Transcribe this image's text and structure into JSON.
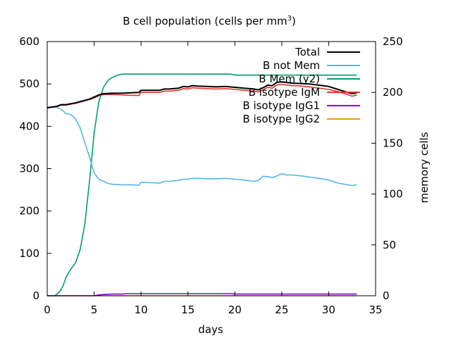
{
  "chart_data": {
    "type": "line",
    "title": "B cell population (cells per mm",
    "title_superscript": "3",
    "title_suffix": ")",
    "xlabel": "days",
    "ylabel": "",
    "y2label": "memory cells",
    "xlim": [
      0,
      35
    ],
    "ylim": [
      0,
      600
    ],
    "y2lim": [
      0,
      250
    ],
    "xticks": [
      0,
      5,
      10,
      15,
      20,
      25,
      30,
      35
    ],
    "yticks": [
      0,
      100,
      200,
      300,
      400,
      500,
      600
    ],
    "y2ticks": [
      0,
      50,
      100,
      150,
      200,
      250
    ],
    "grid": false,
    "legend_position": "top-right",
    "series": [
      {
        "name": "Total",
        "color": "#000000",
        "axis": "y",
        "x": [
          0,
          1,
          1.5,
          2,
          2.5,
          3,
          3.5,
          4,
          4.5,
          5,
          5.5,
          6,
          7,
          8,
          9,
          9.8,
          10,
          11,
          12,
          12.5,
          13,
          14,
          14.5,
          15,
          15.5,
          16,
          17,
          18,
          19,
          20,
          21,
          22,
          22.5,
          23,
          23.5,
          24,
          24.5,
          25,
          26,
          27,
          28,
          29,
          30,
          31,
          32,
          32.5,
          33
        ],
        "values": [
          444,
          447,
          451,
          451,
          453,
          455,
          458,
          461,
          464,
          469,
          474,
          477,
          478,
          478,
          479,
          480,
          485,
          485,
          485,
          488,
          488,
          490,
          494,
          493,
          496,
          495,
          494,
          493,
          494,
          492,
          490,
          488,
          486,
          491,
          497,
          496,
          504,
          505,
          502,
          501,
          500,
          497,
          494,
          487,
          480,
          477,
          479
        ]
      },
      {
        "name": "B not Mem",
        "color": "#56b4e9",
        "axis": "y",
        "x": [
          0,
          1,
          1.5,
          2,
          2.5,
          3,
          3.5,
          4,
          4.5,
          5,
          5.5,
          6,
          6.5,
          7,
          8,
          9,
          9.8,
          10,
          11,
          12,
          12.5,
          13,
          14,
          14.5,
          15,
          15.5,
          16,
          17,
          18,
          19,
          20,
          21,
          22,
          22.5,
          23,
          23.5,
          24,
          24.5,
          25,
          25.5,
          26,
          27,
          28,
          29,
          30,
          31,
          32,
          32.5,
          33
        ],
        "values": [
          444,
          445,
          440,
          430,
          428,
          418,
          397,
          362,
          328,
          290,
          275,
          270,
          265,
          263,
          262,
          262,
          261,
          268,
          267,
          266,
          270,
          270,
          272,
          275,
          275,
          277,
          277,
          276,
          276,
          277,
          275,
          273,
          270,
          272,
          282,
          281,
          279,
          283,
          288,
          285,
          285,
          283,
          280,
          277,
          273,
          266,
          262,
          260,
          262
        ]
      },
      {
        "name": "B Mem (y2)",
        "color": "#009e73",
        "axis": "y2",
        "x": [
          0,
          0.8,
          1.1,
          1.4,
          1.7,
          2,
          2.5,
          3,
          3.5,
          4,
          4.5,
          5,
          5.5,
          6,
          6.5,
          7,
          7.5,
          8,
          9,
          10,
          12,
          14,
          16,
          18,
          19.5,
          20,
          22,
          24,
          26,
          28,
          30,
          32,
          33
        ],
        "values": [
          0,
          0,
          2,
          5,
          10,
          18,
          26,
          32,
          45,
          70,
          112,
          160,
          191,
          205,
          212,
          215,
          217,
          218,
          218,
          218,
          218,
          218,
          218,
          218,
          218,
          217,
          217,
          217,
          217,
          217,
          217,
          217,
          217
        ]
      },
      {
        "name": "B isotype IgM",
        "color": "#e3332b",
        "axis": "y",
        "x": [
          0,
          1,
          1.5,
          2,
          2.5,
          3,
          3.5,
          4,
          4.5,
          5,
          5.5,
          6,
          7,
          8,
          9,
          9.8,
          10,
          11,
          12,
          12.5,
          13,
          14,
          14.5,
          15,
          15.5,
          16,
          17,
          18,
          19,
          20,
          21,
          22,
          22.5,
          23,
          23.5,
          24,
          24.5,
          25,
          26,
          27,
          28,
          29,
          30,
          31,
          32,
          32.5,
          33
        ],
        "values": [
          443,
          446,
          450,
          450,
          452,
          454,
          457,
          460,
          463,
          467,
          472,
          475,
          475,
          474,
          473,
          473,
          480,
          480,
          480,
          483,
          483,
          485,
          489,
          488,
          491,
          490,
          489,
          488,
          489,
          487,
          485,
          483,
          481,
          486,
          492,
          490,
          498,
          499,
          496,
          495,
          493,
          490,
          487,
          482,
          475,
          471,
          474
        ]
      },
      {
        "name": "B isotype IgG1",
        "color": "#9400d3",
        "axis": "y",
        "x": [
          0,
          5,
          5.5,
          6,
          7,
          8,
          8.5,
          10,
          15,
          19.5,
          20,
          25,
          30,
          33
        ],
        "values": [
          0,
          0,
          2,
          3,
          4,
          4,
          5,
          5,
          5,
          5,
          4,
          4,
          4,
          4
        ]
      },
      {
        "name": "B isotype IgG2",
        "color": "#e69f00",
        "axis": "y",
        "x": [
          0,
          33
        ],
        "values": [
          0,
          0
        ]
      }
    ]
  }
}
